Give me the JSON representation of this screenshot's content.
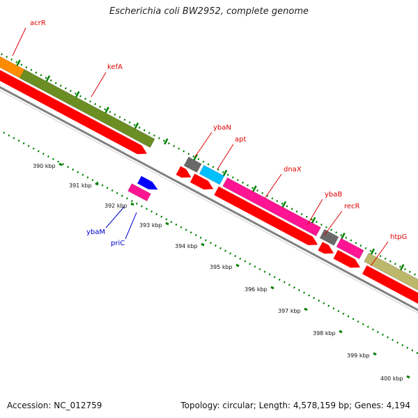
{
  "title": "Escherichia coli BW2952, complete genome",
  "footer": {
    "accession": "Accession: NC_012759",
    "summary": "Topology: circular; Length: 4,578,159 bp; Genes: 4,194"
  },
  "colors": {
    "backbone": "#808080",
    "cds": "#ff0000",
    "dotted_track": "#008000",
    "label_top": "#e00000",
    "label_bottom": "#0000cc"
  },
  "tick_labels": [
    "390 kbp",
    "391 kbp",
    "392 kbp",
    "393 kbp",
    "394 kbp",
    "395 kbp",
    "396 kbp",
    "397 kbp",
    "398 kbp",
    "399 kbp",
    "400 kbp"
  ],
  "genes_top": [
    {
      "name": "acrR",
      "color": "#ff8c00"
    },
    {
      "name": "kefA",
      "color": "#6b8e23"
    },
    {
      "name": "ybaN",
      "color": "#696969"
    },
    {
      "name": "apt",
      "color": "#00bfff"
    },
    {
      "name": "dnaX",
      "color": "#ff1493"
    },
    {
      "name": "ybaB",
      "color": "#696969"
    },
    {
      "name": "recR",
      "color": "#ff1493"
    },
    {
      "name": "htpG",
      "color": "#bdb76b"
    }
  ],
  "genes_bottom": [
    {
      "name": "ybaM",
      "color": "#0000ff"
    },
    {
      "name": "priC",
      "color": "#ff1493"
    }
  ]
}
